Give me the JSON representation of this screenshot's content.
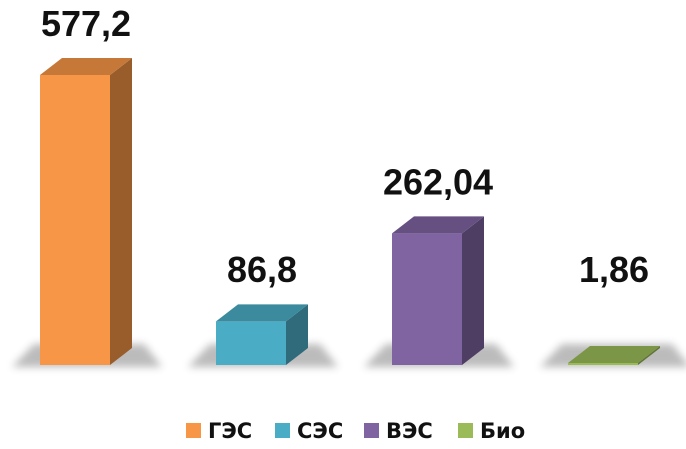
{
  "chart_data": {
    "type": "bar",
    "categories": [
      "ГЭС",
      "СЭС",
      "ВЭС",
      "Био"
    ],
    "values": [
      577.2,
      86.8,
      262.04,
      1.86
    ],
    "data_labels": [
      "577,2",
      "86,8",
      "262,04",
      "1,86"
    ],
    "colors": [
      "#f79646",
      "#4bacc6",
      "#8064a2",
      "#9bbb59"
    ],
    "title": "",
    "xlabel": "",
    "ylabel": "",
    "ylim": [
      0,
      600
    ],
    "grid": false,
    "legend_position": "bottom",
    "style": "3d-column"
  }
}
